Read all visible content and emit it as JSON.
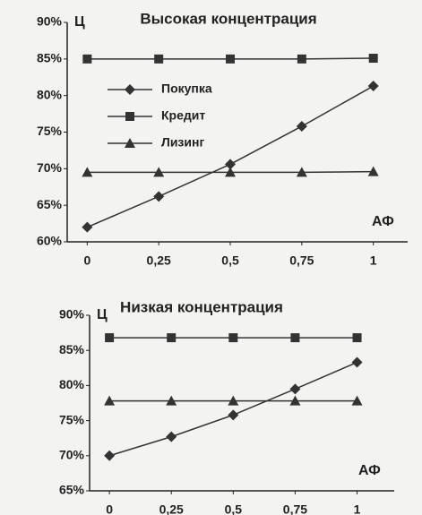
{
  "chart_data": [
    {
      "type": "line",
      "title": "Высокая концентрация",
      "ylabel": "Ц",
      "xlabel": "АФ",
      "x": [
        0,
        0.25,
        0.5,
        0.75,
        1
      ],
      "series": [
        {
          "name": "Покупка",
          "color": "#333333",
          "marker": "diamond",
          "values": [
            62,
            66.2,
            70.6,
            75.8,
            81.3
          ]
        },
        {
          "name": "Кредит",
          "color": "#333333",
          "marker": "square",
          "values": [
            85,
            85,
            85,
            85,
            85.1
          ]
        },
        {
          "name": "Лизинг",
          "color": "#333333",
          "marker": "triangle",
          "values": [
            69.5,
            69.5,
            69.5,
            69.5,
            69.6
          ]
        }
      ],
      "xlim": [
        -0.07,
        1.12
      ],
      "ylim": [
        60,
        90
      ],
      "xticks": [
        0,
        {
          "value": 0.25,
          "label": "0,25"
        },
        {
          "value": 0.5,
          "label": "0,5"
        },
        {
          "value": 0.75,
          "label": "0,75"
        },
        1
      ],
      "yticks": [
        {
          "value": 60,
          "label": "60%"
        },
        {
          "value": 65,
          "label": "65%"
        },
        {
          "value": 70,
          "label": "70%"
        },
        {
          "value": 75,
          "label": "75%"
        },
        {
          "value": 80,
          "label": "80%"
        },
        {
          "value": 85,
          "label": "85%"
        },
        {
          "value": 90,
          "label": "90%"
        }
      ],
      "legend": "upper-left"
    },
    {
      "type": "line",
      "title": "Низкая концентрация",
      "ylabel": "Ц",
      "xlabel": "АФ",
      "x": [
        0,
        0.25,
        0.5,
        0.75,
        1
      ],
      "series": [
        {
          "name": "Покупка",
          "color": "#333333",
          "marker": "diamond",
          "values": [
            70,
            72.7,
            75.8,
            79.5,
            83.3
          ]
        },
        {
          "name": "Кредит",
          "color": "#333333",
          "marker": "square",
          "values": [
            86.8,
            86.8,
            86.8,
            86.8,
            86.8
          ]
        },
        {
          "name": "Лизинг",
          "color": "#333333",
          "marker": "triangle",
          "values": [
            77.8,
            77.8,
            77.8,
            77.8,
            77.8
          ]
        }
      ],
      "xlim": [
        -0.08,
        1.15
      ],
      "ylim": [
        65,
        90
      ],
      "xticks": [
        0,
        {
          "value": 0.25,
          "label": "0,25"
        },
        {
          "value": 0.5,
          "label": "0,5"
        },
        {
          "value": 0.75,
          "label": "0,75"
        },
        1
      ],
      "yticks": [
        {
          "value": 65,
          "label": "65%"
        },
        {
          "value": 70,
          "label": "70%"
        },
        {
          "value": 75,
          "label": "75%"
        },
        {
          "value": 80,
          "label": "80%"
        },
        {
          "value": 85,
          "label": "85%"
        },
        {
          "value": 90,
          "label": "90%"
        }
      ]
    }
  ]
}
